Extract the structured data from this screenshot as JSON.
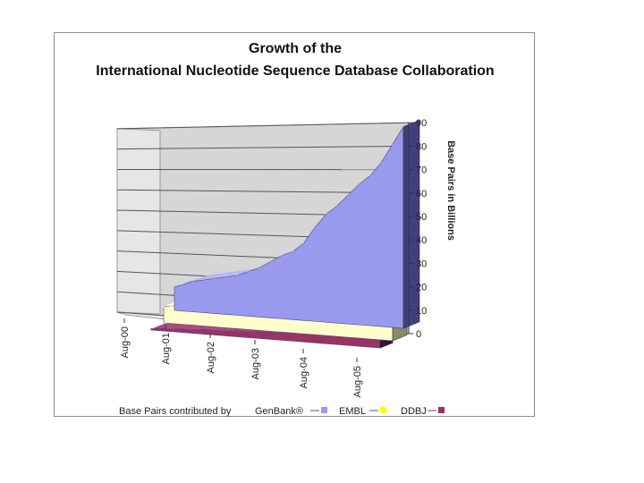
{
  "chart_data": {
    "type": "area",
    "title": "Growth of the",
    "subtitle": "International Nucleotide Sequence Database Collaboration",
    "ylabel": "Base Pairs in Billions",
    "xlabel": "",
    "ylim": [
      0,
      90
    ],
    "y_ticks": [
      "0",
      "10",
      "20",
      "30",
      "40",
      "50",
      "60",
      "70",
      "80",
      "90"
    ],
    "categories": [
      "Aug-00",
      "Aug-01",
      "Aug-02",
      "Aug-03",
      "Aug-04",
      "Aug-05"
    ],
    "x": [
      2000.58,
      2000.75,
      2001.0,
      2001.25,
      2001.5,
      2001.75,
      2002.0,
      2002.25,
      2002.5,
      2002.75,
      2003.0,
      2003.25,
      2003.5,
      2003.75,
      2004.0,
      2004.25,
      2004.5,
      2004.75,
      2005.0,
      2005.25,
      2005.5,
      2005.75
    ],
    "series": [
      {
        "name": "GenBank®",
        "color": "#9999ee",
        "values": [
          10,
          11,
          13,
          14,
          15,
          16,
          17,
          19,
          21,
          24,
          27,
          29,
          33,
          40,
          46,
          50,
          55,
          60,
          64,
          70,
          78,
          86
        ]
      },
      {
        "name": "EMBL",
        "color": "#ffffcc",
        "values": [
          7,
          7.5,
          8,
          8.5,
          9,
          9.5,
          10,
          10,
          10.5,
          10.5,
          11,
          11,
          11,
          11.5,
          11.5,
          11.5,
          12,
          12,
          12,
          12,
          12,
          12
        ]
      },
      {
        "name": "DDBJ",
        "color": "#993366",
        "values": [
          0.5,
          1,
          1,
          1.5,
          1.5,
          2,
          2,
          2,
          2.5,
          2.5,
          3,
          3,
          3,
          3.5,
          3.5,
          3.5,
          4,
          4,
          4,
          4,
          4,
          4
        ]
      }
    ],
    "legend_prefix": "Base Pairs contributed by",
    "legend_placement": "bottom",
    "grid": true
  }
}
